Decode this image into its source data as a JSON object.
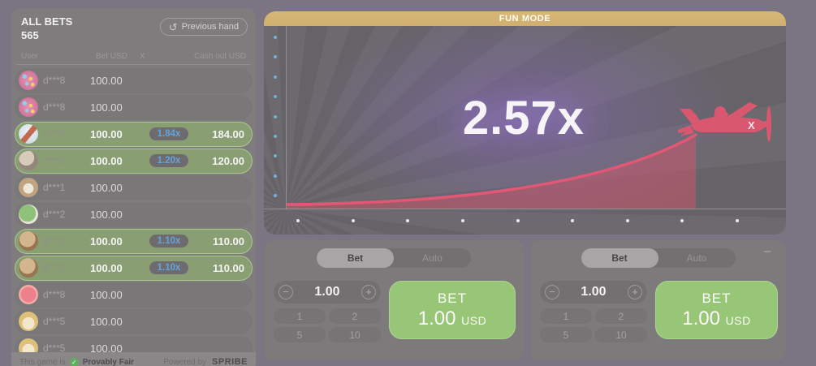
{
  "sidebar": {
    "title": "ALL BETS",
    "count": "565",
    "previous_hand": "Previous hand",
    "columns": {
      "user": "User",
      "bet": "Bet USD",
      "x": "X",
      "cashout": "Cash out USD"
    },
    "bets": [
      {
        "user": "d***8",
        "bet": "100.00",
        "x": "",
        "cashout": "",
        "avatar": "donut",
        "cashed": false
      },
      {
        "user": "d***8",
        "bet": "100.00",
        "x": "",
        "cashout": "",
        "avatar": "donut",
        "cashed": false
      },
      {
        "user": "d***0",
        "bet": "100.00",
        "x": "1.84x",
        "cashout": "184.00",
        "avatar": "eagle",
        "cashed": true
      },
      {
        "user": "d***2",
        "bet": "100.00",
        "x": "1.20x",
        "cashout": "120.00",
        "avatar": "dog",
        "cashed": true
      },
      {
        "user": "d***1",
        "bet": "100.00",
        "x": "",
        "cashout": "",
        "avatar": "owl",
        "cashed": false
      },
      {
        "user": "d***2",
        "bet": "100.00",
        "x": "",
        "cashout": "",
        "avatar": "clover",
        "cashed": false
      },
      {
        "user": "d***2",
        "bet": "100.00",
        "x": "1.10x",
        "cashout": "110.00",
        "avatar": "cat",
        "cashed": true
      },
      {
        "user": "d***2",
        "bet": "100.00",
        "x": "1.10x",
        "cashout": "110.00",
        "avatar": "cat",
        "cashed": true
      },
      {
        "user": "d***8",
        "bet": "100.00",
        "x": "",
        "cashout": "",
        "avatar": "grapefruit",
        "cashed": false
      },
      {
        "user": "d***5",
        "bet": "100.00",
        "x": "",
        "cashout": "",
        "avatar": "luckycat",
        "cashed": false
      },
      {
        "user": "d***5",
        "bet": "100.00",
        "x": "",
        "cashout": "",
        "avatar": "luckycat",
        "cashed": false
      }
    ],
    "footer": {
      "prefix": "This game is",
      "fair": "Provably Fair",
      "powered": "Powered by",
      "brand": "SPRIBE"
    }
  },
  "game": {
    "banner": "FUN MODE",
    "multiplier": "2.57x",
    "left_dots": 9,
    "bottom_dots": 9
  },
  "panels": [
    {
      "tabs": [
        "Bet",
        "Auto"
      ],
      "active": "Bet",
      "amount": "1.00",
      "minus": "−",
      "plus": "+",
      "chips": [
        "1",
        "2",
        "5",
        "10"
      ],
      "bet_label": "BET",
      "bet_amount": "1.00",
      "currency": "USD",
      "removable": false
    },
    {
      "tabs": [
        "Bet",
        "Auto"
      ],
      "active": "Bet",
      "amount": "1.00",
      "minus": "−",
      "plus": "+",
      "chips": [
        "1",
        "2",
        "5",
        "10"
      ],
      "bet_label": "BET",
      "bet_amount": "1.00",
      "currency": "USD",
      "removable": true
    }
  ],
  "colors": {
    "banner_gold": "#d3b173",
    "curve_red": "#e25874",
    "curve_fill": "rgba(210,85,105,0.5)",
    "bet_green": "#98c677",
    "badge_blue": "#63a5da",
    "row_green": "#8a9e74",
    "dot_blue": "#6fb2dd",
    "background": "#7b7482"
  }
}
